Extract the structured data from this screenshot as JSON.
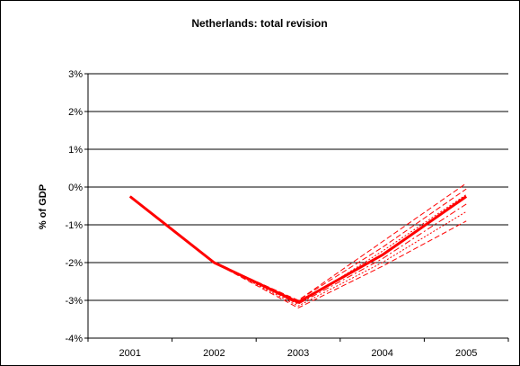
{
  "chart_data": {
    "type": "line",
    "title": "Netherlands: total revision",
    "xlabel": "",
    "ylabel": "% of GDP",
    "categories": [
      "2001",
      "2002",
      "2003",
      "2004",
      "2005"
    ],
    "yticks": [
      "3%",
      "2%",
      "1%",
      "0%",
      "-1%",
      "-2%",
      "-3%",
      "-4%"
    ],
    "ylim": [
      -4,
      3
    ],
    "grid": true,
    "legend": "none",
    "colors": {
      "series": "#ff0000",
      "axis": "#000000",
      "grid": "#000000"
    },
    "series": [
      {
        "style": "solid-thick",
        "values": [
          -0.25,
          -2.0,
          -3.05,
          -1.8,
          -0.25
        ]
      },
      {
        "style": "dashed",
        "values": [
          -0.25,
          -2.0,
          -3.0,
          -1.45,
          0.1
        ]
      },
      {
        "style": "dashed",
        "values": [
          -0.25,
          -2.0,
          -3.0,
          -1.6,
          -0.05
        ]
      },
      {
        "style": "dotted",
        "values": [
          -0.25,
          -2.0,
          -3.1,
          -1.7,
          -0.2
        ]
      },
      {
        "style": "dash-dot",
        "values": [
          -0.25,
          -2.0,
          -3.1,
          -1.9,
          -0.45
        ]
      },
      {
        "style": "dotted",
        "values": [
          -0.25,
          -2.0,
          -3.15,
          -2.0,
          -0.65
        ]
      },
      {
        "style": "dashed",
        "values": [
          -0.25,
          -2.0,
          -3.2,
          -2.1,
          -0.9
        ]
      }
    ]
  }
}
